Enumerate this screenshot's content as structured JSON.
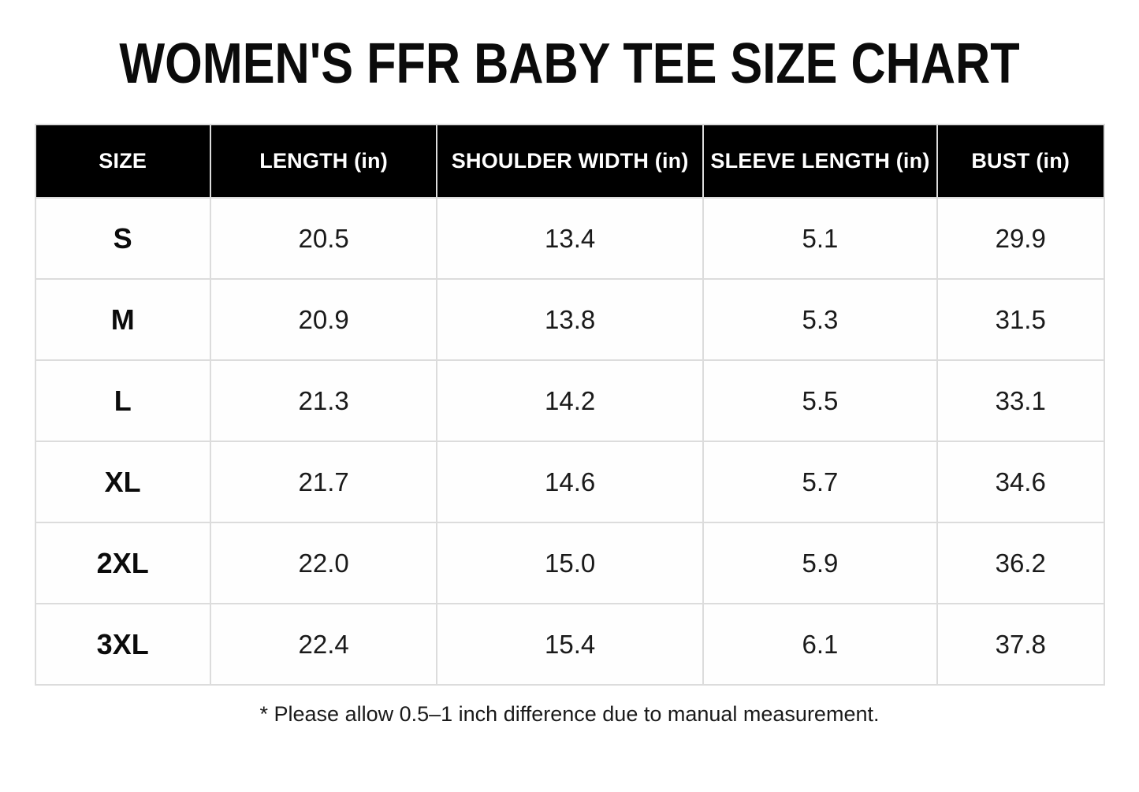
{
  "title": "WOMEN'S FFR BABY TEE SIZE CHART",
  "chart_data": {
    "type": "table",
    "title": "WOMEN'S FFR BABY TEE SIZE CHART",
    "columns": [
      "SIZE",
      "LENGTH (in)",
      "SHOULDER WIDTH (in)",
      "SLEEVE LENGTH (in)",
      "BUST (in)"
    ],
    "rows": [
      {
        "size": "S",
        "length": "20.5",
        "shoulder_width": "13.4",
        "sleeve_length": "5.1",
        "bust": "29.9"
      },
      {
        "size": "M",
        "length": "20.9",
        "shoulder_width": "13.8",
        "sleeve_length": "5.3",
        "bust": "31.5"
      },
      {
        "size": "L",
        "length": "21.3",
        "shoulder_width": "14.2",
        "sleeve_length": "5.5",
        "bust": "33.1"
      },
      {
        "size": "XL",
        "length": "21.7",
        "shoulder_width": "14.6",
        "sleeve_length": "5.7",
        "bust": "34.6"
      },
      {
        "size": "2XL",
        "length": "22.0",
        "shoulder_width": "15.0",
        "sleeve_length": "5.9",
        "bust": "36.2"
      },
      {
        "size": "3XL",
        "length": "22.4",
        "shoulder_width": "15.4",
        "sleeve_length": "6.1",
        "bust": "37.8"
      }
    ],
    "footnote": "* Please allow 0.5–1 inch difference due to manual measurement."
  },
  "colors": {
    "header_bg": "#000000",
    "header_text": "#ffffff",
    "border": "#dcdcdc",
    "body_text": "#1a1a1a",
    "page_bg": "#ffffff"
  }
}
